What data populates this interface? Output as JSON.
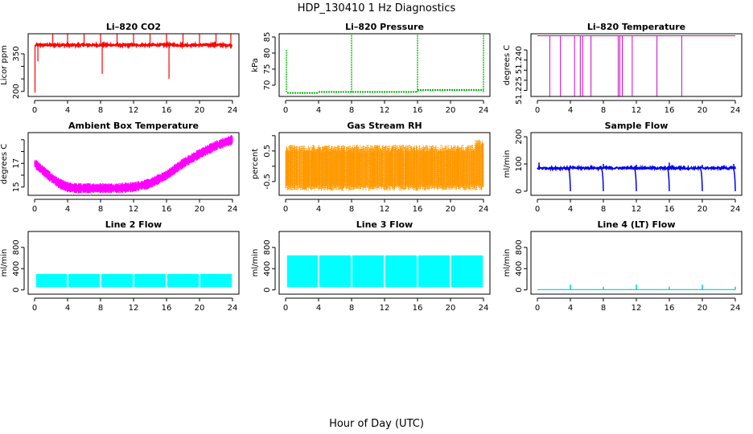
{
  "figure": {
    "title": "HDP_130410  1 Hz Diagnostics",
    "xlabel": "Hour of Day (UTC)"
  },
  "chart_data": [
    {
      "id": "co2",
      "type": "line",
      "title": "Li–820 CO2",
      "ylabel": "Licor ppm",
      "color": "#ff0000",
      "xlim": [
        0,
        24
      ],
      "ylim": [
        180,
        430
      ],
      "xticks": [
        0,
        4,
        8,
        12,
        16,
        20,
        24
      ],
      "yticks": [
        200,
        250,
        300,
        350
      ],
      "ytick_labels": [
        "200",
        "",
        "",
        "350"
      ],
      "baseline": 385,
      "noise": 4,
      "spikes": [
        {
          "x": 0.05,
          "y": 195
        },
        {
          "x": 0.4,
          "y": 320
        },
        {
          "x": 2.2,
          "y": 430
        },
        {
          "x": 4.0,
          "y": 430
        },
        {
          "x": 6.0,
          "y": 430
        },
        {
          "x": 8.0,
          "y": 430
        },
        {
          "x": 8.2,
          "y": 270
        },
        {
          "x": 10.0,
          "y": 430
        },
        {
          "x": 12.0,
          "y": 430
        },
        {
          "x": 14.0,
          "y": 430
        },
        {
          "x": 16.0,
          "y": 430
        },
        {
          "x": 16.3,
          "y": 250
        },
        {
          "x": 18.0,
          "y": 430
        },
        {
          "x": 20.0,
          "y": 430
        },
        {
          "x": 22.0,
          "y": 430
        },
        {
          "x": 23.8,
          "y": 430
        }
      ]
    },
    {
      "id": "pressure",
      "type": "line",
      "title": "Li–820 Pressure",
      "ylabel": "kPa",
      "color": "#00bb00",
      "xlim": [
        0,
        24
      ],
      "ylim": [
        66.5,
        86
      ],
      "xticks": [
        0,
        4,
        8,
        12,
        16,
        20,
        24
      ],
      "yticks": [
        70,
        75,
        80,
        85
      ],
      "ytick_labels": [
        "70",
        "75",
        "80",
        "85"
      ],
      "segments": [
        {
          "x0": 0.2,
          "x1": 4.0,
          "y": 67.6
        },
        {
          "x0": 4.0,
          "x1": 16.0,
          "y": 67.9
        },
        {
          "x0": 16.0,
          "x1": 24.0,
          "y": 68.5
        }
      ],
      "spikes": [
        {
          "x": 0.1,
          "y": 81
        },
        {
          "x": 8.0,
          "y": 86
        },
        {
          "x": 16.0,
          "y": 86
        },
        {
          "x": 24.0,
          "y": 86
        }
      ]
    },
    {
      "id": "licor_temp",
      "type": "line",
      "title": "Li–820 Temperature",
      "ylabel": "degrees C",
      "color": "#cc00cc",
      "xlim": [
        0,
        24
      ],
      "ylim": [
        51.222,
        51.253
      ],
      "xticks": [
        0,
        4,
        8,
        12,
        16,
        20,
        24
      ],
      "yticks": [
        51.225,
        51.23,
        51.235,
        51.24,
        51.245
      ],
      "ytick_labels": [
        "51.225",
        "",
        "",
        "51.240",
        ""
      ],
      "baseline": 51.252,
      "drops": [
        1.5,
        2.8,
        4.5,
        5.2,
        5.5,
        6.5,
        9.8,
        10.0,
        10.3,
        11.5,
        14.5,
        17.5
      ]
    },
    {
      "id": "box_temp",
      "type": "area",
      "title": "Ambient Box Temperature",
      "ylabel": "degrees C",
      "color": "#ff00ff",
      "xlim": [
        0,
        24
      ],
      "ylim": [
        14.3,
        19.6
      ],
      "xticks": [
        0,
        4,
        8,
        12,
        16,
        20,
        24
      ],
      "yticks": [
        15,
        16,
        17,
        18,
        19
      ],
      "ytick_labels": [
        "15",
        "",
        "17",
        "",
        ""
      ],
      "x": [
        0,
        1,
        2,
        3,
        4,
        5,
        6,
        8,
        10,
        12,
        14,
        16,
        18,
        20,
        22,
        24
      ],
      "y": [
        17.0,
        16.4,
        15.8,
        15.3,
        15.0,
        14.9,
        14.9,
        14.9,
        14.9,
        15.0,
        15.3,
        16.0,
        17.0,
        17.8,
        18.5,
        19.0
      ],
      "band": 0.8
    },
    {
      "id": "rh",
      "type": "area",
      "title": "Gas Stream RH",
      "ylabel": "percent",
      "color": "#ff9900",
      "xlim": [
        0,
        24
      ],
      "ylim": [
        -0.95,
        1.1
      ],
      "xticks": [
        0,
        4,
        8,
        12,
        16,
        20,
        24
      ],
      "yticks": [
        -0.5,
        0,
        0.5,
        1.0
      ],
      "ytick_labels": [
        "-0.5",
        "",
        "0.5",
        ""
      ],
      "lower": -0.8,
      "upper": 0.7
    },
    {
      "id": "sample_flow",
      "type": "line",
      "title": "Sample Flow",
      "ylabel": "ml/min",
      "color": "#0000ee",
      "xlim": [
        0,
        24
      ],
      "ylim": [
        -15,
        215
      ],
      "xticks": [
        0,
        4,
        8,
        12,
        16,
        20,
        24
      ],
      "yticks": [
        0,
        100,
        200
      ],
      "ytick_labels": [
        "0",
        "100",
        "200"
      ],
      "baseline": 85,
      "spikes_up": [
        {
          "x": 0.2,
          "y": 105
        },
        {
          "x": 4.0,
          "y": 95
        },
        {
          "x": 8.0,
          "y": 100
        },
        {
          "x": 12.0,
          "y": 97
        },
        {
          "x": 16.0,
          "y": 105
        },
        {
          "x": 20.0,
          "y": 97
        },
        {
          "x": 23.8,
          "y": 100
        }
      ],
      "drops": [
        4.0,
        8.0,
        12.0,
        16.0,
        20.0,
        24.0
      ]
    },
    {
      "id": "line2",
      "type": "area",
      "title": "Line 2 Flow",
      "ylabel": "ml/min",
      "color": "#00ffff",
      "xlim": [
        0,
        24
      ],
      "ylim": [
        -80,
        1100
      ],
      "xticks": [
        0,
        4,
        8,
        12,
        16,
        20,
        24
      ],
      "yticks": [
        0,
        400,
        800
      ],
      "ytick_labels": [
        "0",
        "400",
        "800"
      ],
      "lower": 50,
      "upper": 300,
      "gaps": [
        4.0,
        8.0,
        12.0,
        16.0,
        20.0,
        24.0
      ]
    },
    {
      "id": "line3",
      "type": "area",
      "title": "Line 3 Flow",
      "ylabel": "ml/min",
      "color": "#00ffff",
      "xlim": [
        0,
        24
      ],
      "ylim": [
        -80,
        1100
      ],
      "xticks": [
        0,
        4,
        8,
        12,
        16,
        20,
        24
      ],
      "yticks": [
        0,
        400,
        800
      ],
      "ytick_labels": [
        "0",
        "400",
        "800"
      ],
      "lower": 50,
      "upper": 650,
      "gaps": [
        4.0,
        8.0,
        12.0,
        16.0,
        20.0,
        24.0
      ]
    },
    {
      "id": "line4",
      "type": "line",
      "title": "Line 4 (LT) Flow",
      "ylabel": "ml/min",
      "color": "#00dddd",
      "xlim": [
        0,
        24
      ],
      "ylim": [
        -80,
        1100
      ],
      "xticks": [
        0,
        4,
        8,
        12,
        16,
        20,
        24
      ],
      "yticks": [
        0,
        400,
        800
      ],
      "ytick_labels": [
        "0",
        "400",
        "800"
      ],
      "baseline": 5,
      "spikes": [
        {
          "x": 4.0,
          "y": 100
        },
        {
          "x": 8.0,
          "y": 60
        },
        {
          "x": 12.0,
          "y": 100
        },
        {
          "x": 16.0,
          "y": 60
        },
        {
          "x": 20.0,
          "y": 100
        },
        {
          "x": 24.0,
          "y": 60
        }
      ]
    }
  ]
}
